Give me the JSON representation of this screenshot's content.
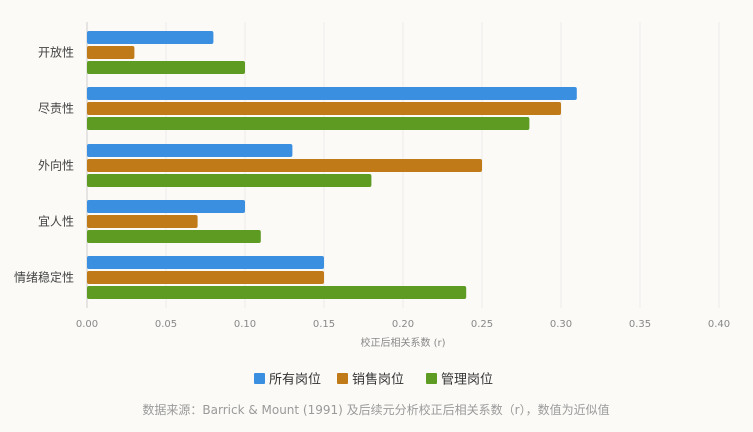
{
  "chart_data": {
    "type": "bar",
    "orientation": "horizontal",
    "categories": [
      "开放性",
      "尽责性",
      "外向性",
      "宜人性",
      "情绪稳定性"
    ],
    "series": [
      {
        "name": "所有岗位",
        "color": "#3b8fe0",
        "values": [
          0.08,
          0.31,
          0.13,
          0.1,
          0.15
        ]
      },
      {
        "name": "销售岗位",
        "color": "#c07a18",
        "values": [
          0.03,
          0.3,
          0.25,
          0.07,
          0.15
        ]
      },
      {
        "name": "管理岗位",
        "color": "#5e9b22",
        "values": [
          0.1,
          0.28,
          0.18,
          0.11,
          0.24
        ]
      }
    ],
    "xlabel": "校正后相关系数 (r)",
    "xlim": [
      0,
      0.4
    ],
    "xticks": [
      "0.00",
      "0.05",
      "0.10",
      "0.15",
      "0.20",
      "0.25",
      "0.30",
      "0.35",
      "0.40"
    ],
    "grid": true,
    "legend_position": "bottom-center"
  },
  "source_note": "数据来源：Barrick & Mount (1991) 及后续元分析校正后相关系数（r），数值为近似值"
}
